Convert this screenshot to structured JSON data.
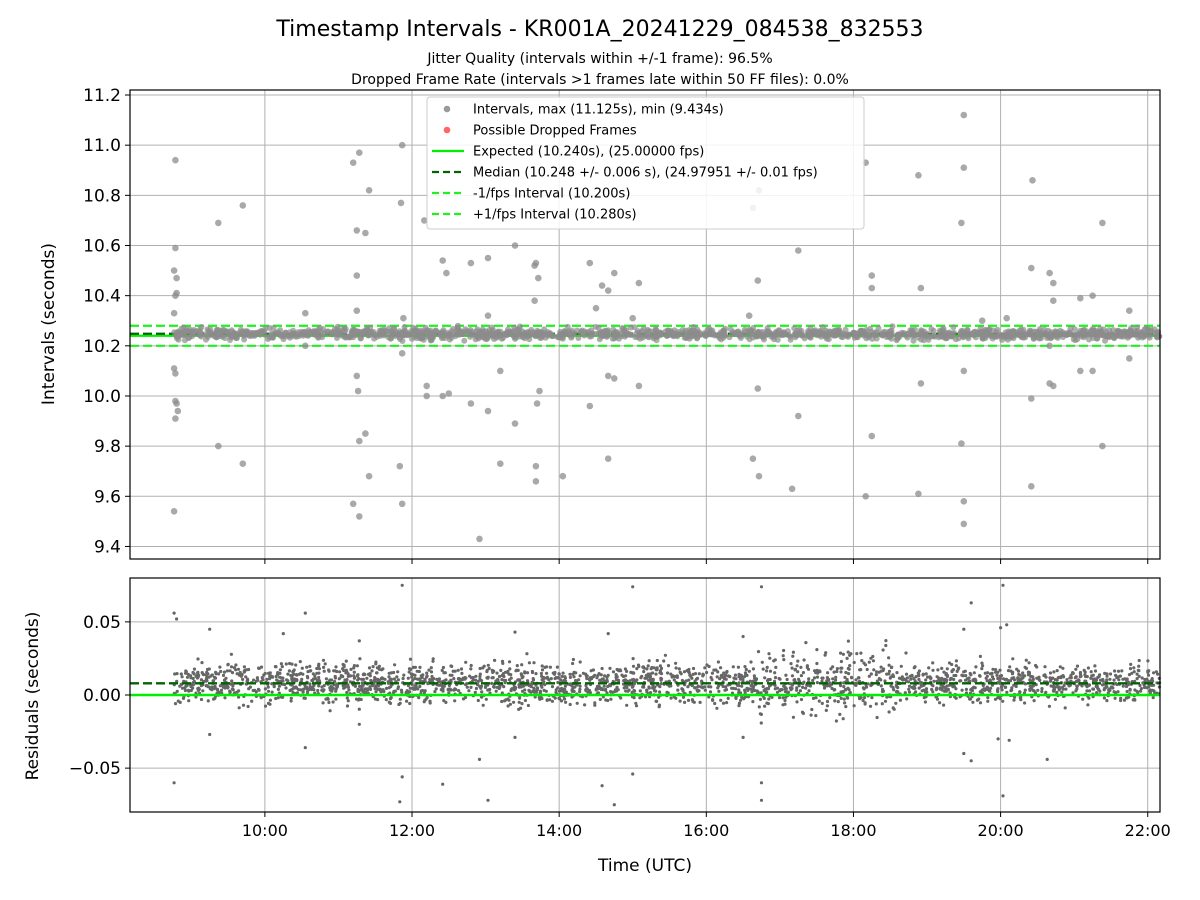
{
  "title": "Timestamp Intervals - KR001A_20241229_084538_832553",
  "subtitle_1": "Jitter Quality (intervals within +/-1 frame): 96.5%",
  "subtitle_2": "Dropped Frame Rate (intervals >1 frames late within 50 FF files): 0.0%",
  "colors": {
    "points": "#808080",
    "dropped": "#ff0000",
    "expected": "#00ee00",
    "median": "#006400",
    "fps_band": "#22ee22",
    "grid": "#b0b0b0"
  },
  "chart_data": [
    {
      "id": "intervals",
      "type": "scatter",
      "ylabel": "Intervals (seconds)",
      "xlim": [
        "08:10",
        "22:10"
      ],
      "ylim": [
        9.35,
        11.22
      ],
      "yticks": [
        "9.4",
        "9.6",
        "9.8",
        "10.0",
        "10.2",
        "10.4",
        "10.6",
        "10.8",
        "11.0",
        "11.2"
      ],
      "ytick_values": [
        9.4,
        9.6,
        9.8,
        10.0,
        10.2,
        10.4,
        10.6,
        10.8,
        11.0,
        11.2
      ],
      "grid": true,
      "legend_position": "top-center",
      "legend": [
        {
          "label": "Intervals, max (11.125s), min (9.434s)",
          "kind": "dot",
          "color": "#9a9a9a"
        },
        {
          "label": "Possible Dropped Frames",
          "kind": "dot",
          "color": "#ff6666"
        },
        {
          "label": "Expected (10.240s), (25.00000 fps)",
          "kind": "line",
          "color": "#00ee00"
        },
        {
          "label": "Median (10.248 +/- 0.006 s), (24.97951 +/- 0.01 fps)",
          "kind": "dashed",
          "color": "#006400"
        },
        {
          "label": "-1/fps Interval (10.200s)",
          "kind": "dashed",
          "color": "#22ee22"
        },
        {
          "label": "+1/fps Interval (10.280s)",
          "kind": "dashed",
          "color": "#22ee22"
        }
      ],
      "reference_lines": [
        {
          "name": "Expected",
          "y": 10.24,
          "style": "solid",
          "color": "#00ee00"
        },
        {
          "name": "Median",
          "y": 10.248,
          "style": "dashed",
          "color": "#006400"
        },
        {
          "name": "-1/fps Interval",
          "y": 10.2,
          "style": "dashed",
          "color": "#22ee22"
        },
        {
          "name": "+1/fps Interval",
          "y": 10.28,
          "style": "dashed",
          "color": "#22ee22"
        }
      ],
      "points": [
        {
          "x": "08:47",
          "y": 10.94
        },
        {
          "x": "08:46",
          "y": 9.54
        },
        {
          "x": "08:47",
          "y": 10.59
        },
        {
          "x": "08:46",
          "y": 10.5
        },
        {
          "x": "08:48",
          "y": 10.47
        },
        {
          "x": "08:48",
          "y": 10.41
        },
        {
          "x": "08:47",
          "y": 10.4
        },
        {
          "x": "08:46",
          "y": 10.33
        },
        {
          "x": "08:46",
          "y": 10.11
        },
        {
          "x": "08:47",
          "y": 10.09
        },
        {
          "x": "08:47",
          "y": 9.98
        },
        {
          "x": "08:48",
          "y": 9.97
        },
        {
          "x": "08:49",
          "y": 9.94
        },
        {
          "x": "08:47",
          "y": 9.91
        },
        {
          "x": "09:22",
          "y": 10.69
        },
        {
          "x": "09:22",
          "y": 9.8
        },
        {
          "x": "09:42",
          "y": 10.76
        },
        {
          "x": "09:42",
          "y": 9.73
        },
        {
          "x": "10:33",
          "y": 10.33
        },
        {
          "x": "10:33",
          "y": 10.2
        },
        {
          "x": "11:12",
          "y": 10.93
        },
        {
          "x": "11:17",
          "y": 10.97
        },
        {
          "x": "11:15",
          "y": 10.66
        },
        {
          "x": "11:22",
          "y": 10.65
        },
        {
          "x": "11:25",
          "y": 10.82
        },
        {
          "x": "11:15",
          "y": 10.48
        },
        {
          "x": "11:15",
          "y": 10.34
        },
        {
          "x": "11:15",
          "y": 10.08
        },
        {
          "x": "11:16",
          "y": 10.02
        },
        {
          "x": "11:17",
          "y": 9.82
        },
        {
          "x": "11:22",
          "y": 9.85
        },
        {
          "x": "11:25",
          "y": 9.68
        },
        {
          "x": "11:12",
          "y": 9.57
        },
        {
          "x": "11:17",
          "y": 9.52
        },
        {
          "x": "11:52",
          "y": 11.0
        },
        {
          "x": "11:51",
          "y": 10.77
        },
        {
          "x": "11:53",
          "y": 10.31
        },
        {
          "x": "11:52",
          "y": 10.17
        },
        {
          "x": "11:50",
          "y": 9.72
        },
        {
          "x": "11:52",
          "y": 9.57
        },
        {
          "x": "12:10",
          "y": 10.7
        },
        {
          "x": "12:12",
          "y": 10.04
        },
        {
          "x": "12:12",
          "y": 10.0
        },
        {
          "x": "12:25",
          "y": 10.0
        },
        {
          "x": "12:25",
          "y": 10.54
        },
        {
          "x": "12:28",
          "y": 10.49
        },
        {
          "x": "12:30",
          "y": 10.01
        },
        {
          "x": "12:48",
          "y": 10.53
        },
        {
          "x": "12:48",
          "y": 9.97
        },
        {
          "x": "12:55",
          "y": 9.43
        },
        {
          "x": "13:02",
          "y": 10.55
        },
        {
          "x": "13:02",
          "y": 10.32
        },
        {
          "x": "13:02",
          "y": 9.94
        },
        {
          "x": "13:12",
          "y": 10.1
        },
        {
          "x": "13:12",
          "y": 9.73
        },
        {
          "x": "13:24",
          "y": 10.6
        },
        {
          "x": "13:24",
          "y": 9.89
        },
        {
          "x": "13:40",
          "y": 10.52
        },
        {
          "x": "13:41",
          "y": 10.53
        },
        {
          "x": "13:43",
          "y": 10.47
        },
        {
          "x": "13:40",
          "y": 10.38
        },
        {
          "x": "13:42",
          "y": 9.97
        },
        {
          "x": "13:44",
          "y": 10.02
        },
        {
          "x": "13:41",
          "y": 9.72
        },
        {
          "x": "13:41",
          "y": 9.66
        },
        {
          "x": "14:03",
          "y": 9.68
        },
        {
          "x": "14:25",
          "y": 10.53
        },
        {
          "x": "14:25",
          "y": 9.96
        },
        {
          "x": "14:30",
          "y": 10.35
        },
        {
          "x": "14:35",
          "y": 10.44
        },
        {
          "x": "14:40",
          "y": 10.42
        },
        {
          "x": "14:45",
          "y": 10.49
        },
        {
          "x": "14:40",
          "y": 10.08
        },
        {
          "x": "14:45",
          "y": 10.07
        },
        {
          "x": "14:40",
          "y": 9.75
        },
        {
          "x": "15:00",
          "y": 10.31
        },
        {
          "x": "15:05",
          "y": 10.45
        },
        {
          "x": "15:05",
          "y": 10.04
        },
        {
          "x": "16:35",
          "y": 10.32
        },
        {
          "x": "16:38",
          "y": 10.75
        },
        {
          "x": "16:43",
          "y": 10.82
        },
        {
          "x": "16:42",
          "y": 10.46
        },
        {
          "x": "16:42",
          "y": 10.03
        },
        {
          "x": "16:38",
          "y": 9.75
        },
        {
          "x": "16:43",
          "y": 9.68
        },
        {
          "x": "17:10",
          "y": 9.63
        },
        {
          "x": "17:15",
          "y": 10.58
        },
        {
          "x": "17:15",
          "y": 9.92
        },
        {
          "x": "18:10",
          "y": 10.93
        },
        {
          "x": "18:15",
          "y": 10.48
        },
        {
          "x": "18:15",
          "y": 10.43
        },
        {
          "x": "18:15",
          "y": 9.84
        },
        {
          "x": "18:10",
          "y": 9.6
        },
        {
          "x": "18:53",
          "y": 10.88
        },
        {
          "x": "18:55",
          "y": 10.43
        },
        {
          "x": "18:55",
          "y": 10.05
        },
        {
          "x": "18:53",
          "y": 9.61
        },
        {
          "x": "19:30",
          "y": 11.12
        },
        {
          "x": "19:30",
          "y": 10.91
        },
        {
          "x": "19:28",
          "y": 10.69
        },
        {
          "x": "19:30",
          "y": 10.1
        },
        {
          "x": "19:28",
          "y": 9.81
        },
        {
          "x": "19:30",
          "y": 9.58
        },
        {
          "x": "19:30",
          "y": 9.49
        },
        {
          "x": "19:45",
          "y": 10.3
        },
        {
          "x": "20:05",
          "y": 10.31
        },
        {
          "x": "20:25",
          "y": 10.51
        },
        {
          "x": "20:26",
          "y": 10.86
        },
        {
          "x": "20:25",
          "y": 9.99
        },
        {
          "x": "20:25",
          "y": 9.64
        },
        {
          "x": "20:40",
          "y": 10.49
        },
        {
          "x": "20:43",
          "y": 10.45
        },
        {
          "x": "20:43",
          "y": 10.38
        },
        {
          "x": "20:40",
          "y": 10.05
        },
        {
          "x": "20:43",
          "y": 10.04
        },
        {
          "x": "20:40",
          "y": 10.2
        },
        {
          "x": "21:05",
          "y": 10.39
        },
        {
          "x": "21:05",
          "y": 10.1
        },
        {
          "x": "21:15",
          "y": 10.4
        },
        {
          "x": "21:15",
          "y": 10.1
        },
        {
          "x": "21:23",
          "y": 10.69
        },
        {
          "x": "21:23",
          "y": 9.8
        },
        {
          "x": "21:45",
          "y": 10.34
        },
        {
          "x": "21:45",
          "y": 10.15
        }
      ]
    },
    {
      "id": "residuals",
      "type": "scatter",
      "ylabel": "Residuals (seconds)",
      "xlabel": "Time (UTC)",
      "xlim": [
        "08:10",
        "22:10"
      ],
      "xticks": [
        "10:00",
        "12:00",
        "14:00",
        "16:00",
        "18:00",
        "20:00",
        "22:00"
      ],
      "ylim": [
        -0.08,
        0.08
      ],
      "yticks": [
        "−0.05",
        "0.00",
        "0.05"
      ],
      "ytick_values": [
        -0.05,
        0.0,
        0.05
      ],
      "grid": true,
      "reference_lines": [
        {
          "name": "Expected",
          "y": 0.0,
          "style": "solid",
          "color": "#00ee00"
        },
        {
          "name": "Median",
          "y": 0.008,
          "style": "dashed",
          "color": "#006400"
        }
      ],
      "x_range": [
        "08:45",
        "22:10"
      ],
      "dense_band": {
        "center": 0.008,
        "spread": 0.008,
        "approx_points": 2500
      },
      "outliers": [
        {
          "x": "08:46",
          "y": 0.056
        },
        {
          "x": "08:48",
          "y": 0.052
        },
        {
          "x": "08:46",
          "y": -0.06
        },
        {
          "x": "09:15",
          "y": 0.045
        },
        {
          "x": "09:15",
          "y": -0.027
        },
        {
          "x": "10:15",
          "y": 0.042
        },
        {
          "x": "10:33",
          "y": 0.056
        },
        {
          "x": "10:33",
          "y": -0.036
        },
        {
          "x": "11:17",
          "y": 0.037
        },
        {
          "x": "11:17",
          "y": -0.02
        },
        {
          "x": "11:52",
          "y": 0.075
        },
        {
          "x": "11:52",
          "y": -0.056
        },
        {
          "x": "11:50",
          "y": -0.073
        },
        {
          "x": "12:25",
          "y": -0.061
        },
        {
          "x": "12:55",
          "y": -0.044
        },
        {
          "x": "13:02",
          "y": -0.072
        },
        {
          "x": "13:24",
          "y": 0.043
        },
        {
          "x": "13:24",
          "y": -0.029
        },
        {
          "x": "14:40",
          "y": 0.042
        },
        {
          "x": "14:35",
          "y": -0.062
        },
        {
          "x": "14:45",
          "y": -0.075
        },
        {
          "x": "15:00",
          "y": 0.074
        },
        {
          "x": "15:00",
          "y": -0.054
        },
        {
          "x": "16:30",
          "y": 0.04
        },
        {
          "x": "16:30",
          "y": -0.029
        },
        {
          "x": "16:45",
          "y": 0.074
        },
        {
          "x": "16:45",
          "y": -0.06
        },
        {
          "x": "16:45",
          "y": -0.072
        },
        {
          "x": "19:30",
          "y": 0.045
        },
        {
          "x": "19:30",
          "y": -0.04
        },
        {
          "x": "19:36",
          "y": 0.063
        },
        {
          "x": "19:36",
          "y": -0.045
        },
        {
          "x": "19:58",
          "y": -0.03
        },
        {
          "x": "20:00",
          "y": 0.046
        },
        {
          "x": "20:05",
          "y": 0.048
        },
        {
          "x": "20:02",
          "y": 0.075
        },
        {
          "x": "20:02",
          "y": -0.069
        },
        {
          "x": "20:07",
          "y": -0.031
        },
        {
          "x": "20:38",
          "y": -0.044
        }
      ]
    }
  ]
}
